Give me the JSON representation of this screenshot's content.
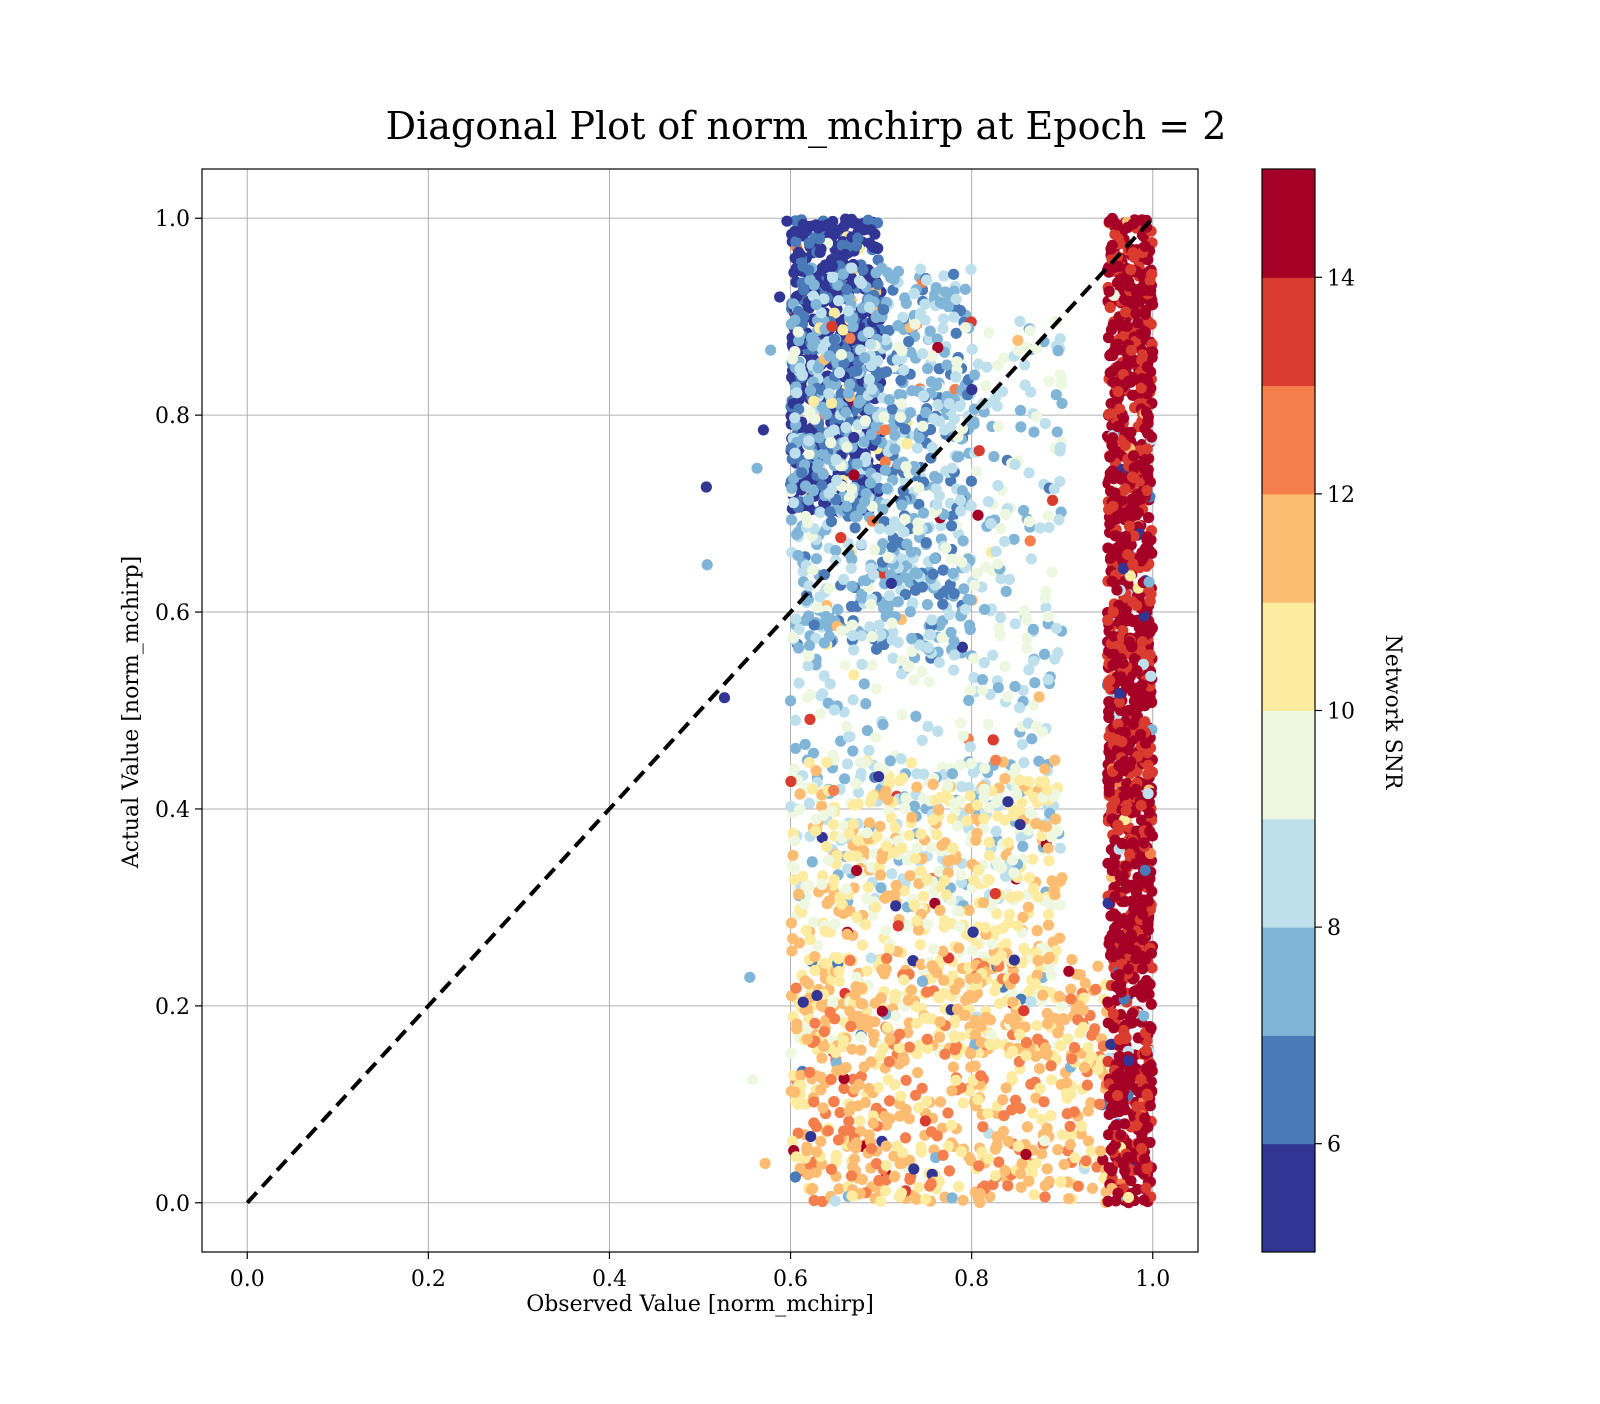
{
  "chart_data": {
    "type": "scatter",
    "title": "Diagonal Plot of norm_mchirp at Epoch = 2",
    "xlabel": "Observed Value [norm_mchirp]",
    "ylabel": "Actual Value [norm_mchirp]",
    "xlim": [
      -0.05,
      1.05
    ],
    "ylim": [
      -0.05,
      1.05
    ],
    "xticks": [
      0.0,
      0.2,
      0.4,
      0.6,
      0.8,
      1.0
    ],
    "yticks": [
      0.0,
      0.2,
      0.4,
      0.6,
      0.8,
      1.0
    ],
    "xtick_labels": [
      "0.0",
      "0.2",
      "0.4",
      "0.6",
      "0.8",
      "1.0"
    ],
    "ytick_labels": [
      "0.0",
      "0.2",
      "0.4",
      "0.6",
      "0.8",
      "1.0"
    ],
    "grid": true,
    "reference_line": {
      "style": "dashed",
      "color": "#000000",
      "x": [
        0.0,
        1.0
      ],
      "y": [
        0.0,
        1.0
      ]
    },
    "colorbar": {
      "label": "Network SNR",
      "range": [
        5,
        15
      ],
      "ticks": [
        6,
        8,
        10,
        12,
        14
      ],
      "tick_labels": [
        "6",
        "8",
        "10",
        "12",
        "14"
      ],
      "colors": [
        "#313695",
        "#4a7ab7",
        "#81b5d8",
        "#bee0ed",
        "#eef8e1",
        "#fdeba0",
        "#fcbd72",
        "#f47f4d",
        "#d93c2f",
        "#a50026"
      ]
    },
    "points": [
      {
        "x": 0.507,
        "y": 0.727,
        "snr": 5.5
      },
      {
        "x": 0.508,
        "y": 0.648,
        "snr": 7.5
      },
      {
        "x": 0.527,
        "y": 0.513,
        "snr": 5.5
      },
      {
        "x": 0.555,
        "y": 0.229,
        "snr": 7.5
      },
      {
        "x": 0.558,
        "y": 0.125,
        "snr": 9.5
      },
      {
        "x": 0.563,
        "y": 0.746,
        "snr": 7.5
      },
      {
        "x": 0.57,
        "y": 0.785,
        "snr": 5.5
      },
      {
        "x": 0.578,
        "y": 0.866,
        "snr": 7.5
      },
      {
        "x": 0.572,
        "y": 0.04,
        "snr": 11.5
      },
      {
        "x": 0.588,
        "y": 0.92,
        "snr": 5.5
      },
      {
        "x": 0.596,
        "y": 0.997,
        "snr": 5.5
      }
    ],
    "cloud": [
      {
        "x_range": [
          0.6,
          0.7
        ],
        "y_range": [
          0.7,
          1.0
        ],
        "snr": 5.5
      },
      {
        "x_range": [
          0.6,
          0.8
        ],
        "y_range": [
          0.55,
          0.95
        ],
        "snr": 7.5
      },
      {
        "x_range": [
          0.6,
          0.9
        ],
        "y_range": [
          0.3,
          0.9
        ],
        "snr": 8.5
      },
      {
        "x_range": [
          0.6,
          0.9
        ],
        "y_range": [
          0.15,
          0.45
        ],
        "snr": 10.5
      },
      {
        "x_range": [
          0.6,
          0.95
        ],
        "y_range": [
          0.0,
          0.25
        ],
        "snr": 11.5
      },
      {
        "x_range": [
          0.95,
          1.0
        ],
        "y_range": [
          0.0,
          1.0
        ],
        "snr": 14.5
      }
    ]
  }
}
